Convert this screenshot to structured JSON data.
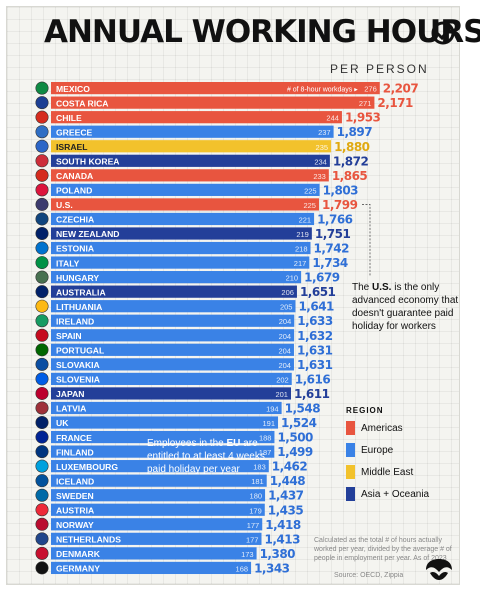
{
  "header": {
    "title": "ANNUAL WORKING HOURS",
    "subtitle": "PER PERSON"
  },
  "colors": {
    "Americas": "#e8553f",
    "Europe": "#3a82e6",
    "Middle East": "#f2c22c",
    "Asia + Oceania": "#233f99"
  },
  "chart_data": {
    "type": "bar",
    "orientation": "horizontal",
    "categories": [
      "MEXICO",
      "COSTA RICA",
      "CHILE",
      "GREECE",
      "ISRAEL",
      "SOUTH KOREA",
      "CANADA",
      "POLAND",
      "U.S.",
      "CZECHIA",
      "NEW ZEALAND",
      "ESTONIA",
      "ITALY",
      "HUNGARY",
      "AUSTRALIA",
      "LITHUANIA",
      "IRELAND",
      "SPAIN",
      "PORTUGAL",
      "SLOVAKIA",
      "SLOVENIA",
      "JAPAN",
      "LATVIA",
      "UK",
      "FRANCE",
      "FINLAND",
      "LUXEMBOURG",
      "ICELAND",
      "SWEDEN",
      "AUSTRIA",
      "NORWAY",
      "NETHERLANDS",
      "DENMARK",
      "GERMANY"
    ],
    "values": [
      2207,
      2171,
      1953,
      1897,
      1880,
      1872,
      1865,
      1803,
      1799,
      1766,
      1751,
      1742,
      1734,
      1679,
      1651,
      1641,
      1633,
      1632,
      1631,
      1631,
      1616,
      1611,
      1548,
      1524,
      1500,
      1499,
      1462,
      1448,
      1437,
      1435,
      1418,
      1413,
      1380,
      1343
    ],
    "workdays": [
      276,
      271,
      244,
      237,
      235,
      234,
      233,
      225,
      225,
      221,
      219,
      218,
      217,
      210,
      206,
      205,
      204,
      204,
      204,
      204,
      202,
      201,
      194,
      191,
      188,
      187,
      183,
      181,
      180,
      179,
      177,
      177,
      173,
      168
    ],
    "workdays_label": "# of 8-hour workdays ▸",
    "regions": [
      "Americas",
      "Americas",
      "Americas",
      "Europe",
      "Middle East",
      "Asia + Oceania",
      "Americas",
      "Europe",
      "Americas",
      "Europe",
      "Asia + Oceania",
      "Europe",
      "Europe",
      "Europe",
      "Asia + Oceania",
      "Europe",
      "Europe",
      "Europe",
      "Europe",
      "Europe",
      "Europe",
      "Asia + Oceania",
      "Europe",
      "Europe",
      "Europe",
      "Europe",
      "Europe",
      "Europe",
      "Europe",
      "Europe",
      "Europe",
      "Europe",
      "Europe",
      "Europe"
    ],
    "icons": [
      "mexico-flag-icon",
      "costa-rica-flag-icon",
      "chile-flag-icon",
      "greece-flag-icon",
      "israel-flag-icon",
      "south-korea-flag-icon",
      "canada-flag-icon",
      "poland-flag-icon",
      "us-flag-icon",
      "czechia-flag-icon",
      "new-zealand-flag-icon",
      "estonia-flag-icon",
      "italy-flag-icon",
      "hungary-flag-icon",
      "australia-flag-icon",
      "lithuania-flag-icon",
      "ireland-flag-icon",
      "spain-flag-icon",
      "portugal-flag-icon",
      "slovakia-flag-icon",
      "slovenia-flag-icon",
      "japan-flag-icon",
      "latvia-flag-icon",
      "uk-flag-icon",
      "france-flag-icon",
      "finland-flag-icon",
      "luxembourg-flag-icon",
      "iceland-flag-icon",
      "sweden-flag-icon",
      "austria-flag-icon",
      "norway-flag-icon",
      "netherlands-flag-icon",
      "denmark-flag-icon",
      "germany-flag-icon"
    ],
    "flag_colors": [
      "#0f8a44",
      "#1c3f94",
      "#d52b1e",
      "#2f6ec4",
      "#2c66c8",
      "#cd2e3a",
      "#d52b1e",
      "#dc143c",
      "#3c3b6e",
      "#11457e",
      "#012169",
      "#0072ce",
      "#009246",
      "#477050",
      "#012169",
      "#fdb913",
      "#169b62",
      "#c60b1e",
      "#006600",
      "#0b4ea2",
      "#005ce5",
      "#bc002d",
      "#9e3039",
      "#012169",
      "#002395",
      "#003580",
      "#00a1de",
      "#02529c",
      "#006aa7",
      "#ed2939",
      "#ba0c2f",
      "#21468b",
      "#c8102e",
      "#111111"
    ]
  },
  "annotations": {
    "us_note": {
      "bold": "U.S.",
      "before": "The ",
      "after": " is the only advanced economy that doesn't guarantee paid holiday for workers"
    },
    "eu_note": {
      "before": "Employees in the ",
      "bold": "EU",
      "after": " are entitled to at least 4 weeks paid holiday per year"
    }
  },
  "legend": {
    "title": "REGION",
    "items": [
      "Americas",
      "Europe",
      "Middle East",
      "Asia + Oceania"
    ]
  },
  "footer": {
    "calc_note": "Calculated as the total # of hours actually worked per year, divided by the average # of people in employment per year. As of 2023",
    "source": "Source: OECD, Zippia"
  }
}
